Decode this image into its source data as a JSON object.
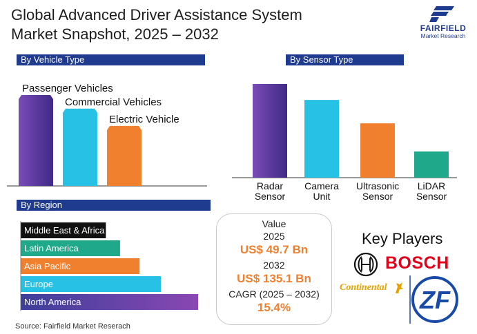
{
  "header": {
    "title_line1": "Global Advanced Driver Assistance System",
    "title_line2": "Market Snapshot, 2025 – 2032",
    "logo_brand": "FAIRFIELD",
    "logo_sub": "Market Research"
  },
  "colors": {
    "navy": "#1f3b8f",
    "purple": "#5e3aa0",
    "cyan": "#27c1e6",
    "orange": "#f07f2e",
    "green": "#1fa889",
    "black": "#111111",
    "bosch_red": "#e2001a",
    "zf_blue": "#1a4aa8"
  },
  "chart_data": [
    {
      "type": "bar",
      "title": "By Vehicle Type",
      "categories": [
        "Passenger Vehicles",
        "Commercial Vehicles",
        "Electric Vehicle"
      ],
      "values": [
        100,
        85,
        66
      ],
      "value_units": "relative",
      "colors": [
        "#5e3aa0",
        "#27c1e6",
        "#f07f2e"
      ]
    },
    {
      "type": "bar",
      "title": "By Sensor Type",
      "categories": [
        "Radar Sensor",
        "Camera Unit",
        "Ultrasonic Sensor",
        "LiDAR Sensor"
      ],
      "category_lines": [
        [
          "Radar",
          "Sensor"
        ],
        [
          "Camera",
          "Unit"
        ],
        [
          "Ultrasonic",
          "Sensor"
        ],
        [
          "LiDAR",
          "Sensor"
        ]
      ],
      "values": [
        100,
        83,
        58,
        28
      ],
      "value_units": "relative",
      "colors": [
        "#5e3aa0",
        "#27c1e6",
        "#f07f2e",
        "#1fa889"
      ]
    },
    {
      "type": "bar",
      "orientation": "horizontal",
      "title": "By Region",
      "categories": [
        "Middle East & Africa",
        "Latin America",
        "Asia Pacific",
        "Europe",
        "North America"
      ],
      "values": [
        48,
        56,
        67,
        79,
        100
      ],
      "value_units": "relative",
      "colors": [
        "#111111",
        "#1fa889",
        "#f07f2e",
        "#27c1e6",
        "#5e3aa0"
      ]
    }
  ],
  "value_box": {
    "label": "Value",
    "year1": "2025",
    "value1": "US$ 49.7 Bn",
    "year2": "2032",
    "value2": "US$ 135.1 Bn",
    "cagr_label": "CAGR (2025 – 2032)",
    "cagr_value": "15.4%"
  },
  "key_players": {
    "title": "Key Players",
    "bosch": "BOSCH",
    "continental": "Continental",
    "zf": "ZF"
  },
  "source": "Source: Fairfield Market Reserach"
}
